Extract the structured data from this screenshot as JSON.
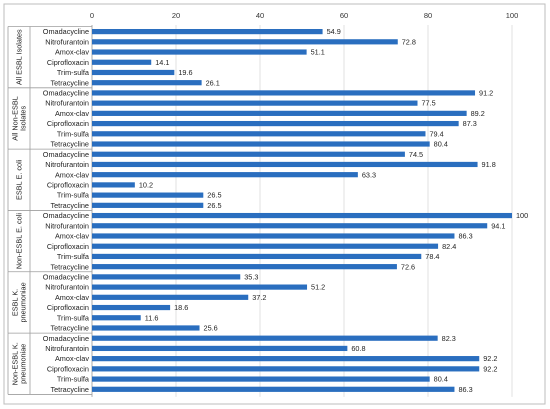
{
  "chart_data": {
    "type": "bar",
    "orientation": "horizontal",
    "xlim": [
      0,
      100
    ],
    "xticks": [
      "0",
      "20",
      "40",
      "60",
      "80",
      "100"
    ],
    "grid": true,
    "bar_color": "#2a6ebf",
    "groups": [
      {
        "label_lines": [
          "All ESBL Isolates"
        ],
        "categories": [
          "Omadacycline",
          "Nitrofurantoin",
          "Amox-clav",
          "Ciprofloxacin",
          "Trim-sulfa",
          "Tetracycline"
        ],
        "values": [
          54.9,
          72.8,
          51.1,
          14.1,
          19.6,
          26.1
        ]
      },
      {
        "label_lines": [
          "All Non-ESBL",
          "Isolates"
        ],
        "categories": [
          "Omadacycline",
          "Nitrofurantoin",
          "Amox-clav",
          "Ciprofloxacin",
          "Trim-sulfa",
          "Tetracycline"
        ],
        "values": [
          91.2,
          77.5,
          89.2,
          87.3,
          79.4,
          80.4
        ]
      },
      {
        "label_lines": [
          "ESBL E. coli"
        ],
        "categories": [
          "Omadacycline",
          "Nitrofurantoin",
          "Amox-clav",
          "Ciprofloxacin",
          "Trim-sulfa",
          "Tetracycline"
        ],
        "values": [
          74.5,
          91.8,
          63.3,
          10.2,
          26.5,
          26.5
        ]
      },
      {
        "label_lines": [
          "Non-ESBL E. coli"
        ],
        "categories": [
          "Omadacycline",
          "Nitrofurantoin",
          "Amox-clav",
          "Ciprofloxacin",
          "Trim-sulfa",
          "Tetracycline"
        ],
        "values": [
          100,
          94.1,
          86.3,
          82.4,
          78.4,
          72.6
        ]
      },
      {
        "label_lines": [
          "ESBL K.",
          "pneumoniae"
        ],
        "categories": [
          "Omadacycline",
          "Nitrofurantoin",
          "Amox-clav",
          "Ciprofloxacin",
          "Trim-sulfa",
          "Tetracycline"
        ],
        "values": [
          35.3,
          51.2,
          37.2,
          18.6,
          11.6,
          25.6
        ]
      },
      {
        "label_lines": [
          "Non-ESBL K.",
          "pneumoniae"
        ],
        "categories": [
          "Omadacycline",
          "Nitrofurantoin",
          "Amox-clav",
          "Ciprofloxacin",
          "Trim-sulfa",
          "Tetracycline"
        ],
        "values": [
          82.3,
          60.8,
          92.2,
          92.2,
          80.4,
          86.3
        ]
      }
    ]
  }
}
